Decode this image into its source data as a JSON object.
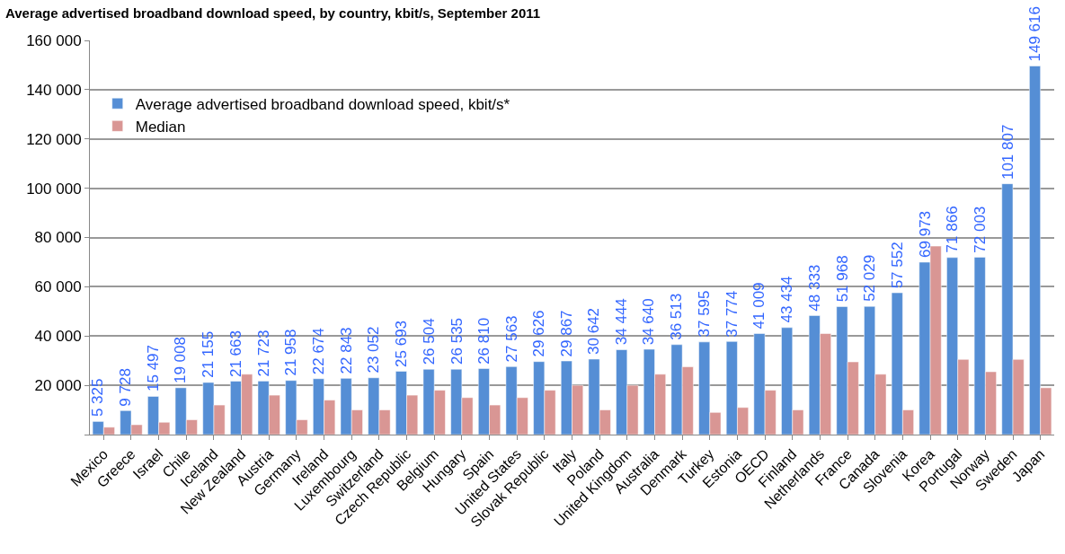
{
  "chart_data": {
    "type": "bar",
    "title": "Average advertised broadband download speed, by country, kbit/s, September 2011",
    "categories": [
      "Mexico",
      "Greece",
      "Israel",
      "Chile",
      "Iceland",
      "New Zealand",
      "Austria",
      "Germany",
      "Ireland",
      "Luxembourg",
      "Switzerland",
      "Czech Republic",
      "Belgium",
      "Hungary",
      "Spain",
      "United States",
      "Slovak Republic",
      "Italy",
      "Poland",
      "United Kingdom",
      "Australia",
      "Denmark",
      "Turkey",
      "Estonia",
      "OECD",
      "Finland",
      "Netherlands",
      "France",
      "Canada",
      "Slovenia",
      "Korea",
      "Portugal",
      "Norway",
      "Sweden",
      "Japan"
    ],
    "series": [
      {
        "name": "Average advertised broadband download speed, kbit/s*",
        "color": "#558ed5",
        "values": [
          5325,
          9728,
          15497,
          19008,
          21155,
          21663,
          21723,
          21958,
          22674,
          22843,
          23052,
          25693,
          26504,
          26535,
          26810,
          27563,
          29626,
          29867,
          30642,
          34444,
          34640,
          36513,
          37595,
          37774,
          41009,
          43434,
          48333,
          51968,
          52029,
          57552,
          69973,
          71866,
          72003,
          101807,
          149616
        ],
        "value_labels": [
          "5 325",
          "9 728",
          "15 497",
          "19 008",
          "21 155",
          "21 663",
          "21 723",
          "21 958",
          "22 674",
          "22 843",
          "23 052",
          "25 693",
          "26 504",
          "26 535",
          "26 810",
          "27 563",
          "29 626",
          "29 867",
          "30 642",
          "34 444",
          "34 640",
          "36 513",
          "37 595",
          "37 774",
          "41 009",
          "43 434",
          "48 333",
          "51 968",
          "52 029",
          "57 552",
          "69 973",
          "71 866",
          "72 003",
          "101 807",
          "149 616"
        ]
      },
      {
        "name": "Median",
        "color": "#d99694",
        "values": [
          3000,
          4000,
          5000,
          6000,
          12000,
          24500,
          16000,
          6000,
          14000,
          10000,
          10000,
          16000,
          18000,
          15000,
          12000,
          15000,
          18000,
          20000,
          10000,
          20000,
          24500,
          27500,
          9000,
          11000,
          18000,
          10000,
          41000,
          29500,
          24500,
          10000,
          76500,
          30500,
          25500,
          30500,
          19000
        ]
      }
    ],
    "ylim": [
      0,
      160000
    ],
    "yticks": [
      {
        "value": 0,
        "label": null
      },
      {
        "value": 20000,
        "label": "20 000"
      },
      {
        "value": 40000,
        "label": "40 000"
      },
      {
        "value": 60000,
        "label": "60 000"
      },
      {
        "value": 80000,
        "label": "80 000"
      },
      {
        "value": 100000,
        "label": "100 000"
      },
      {
        "value": 120000,
        "label": "120 000"
      },
      {
        "value": 140000,
        "label": "140 000"
      },
      {
        "value": 160000,
        "label": "160 000"
      }
    ],
    "grid": "y",
    "legend": "top left"
  }
}
